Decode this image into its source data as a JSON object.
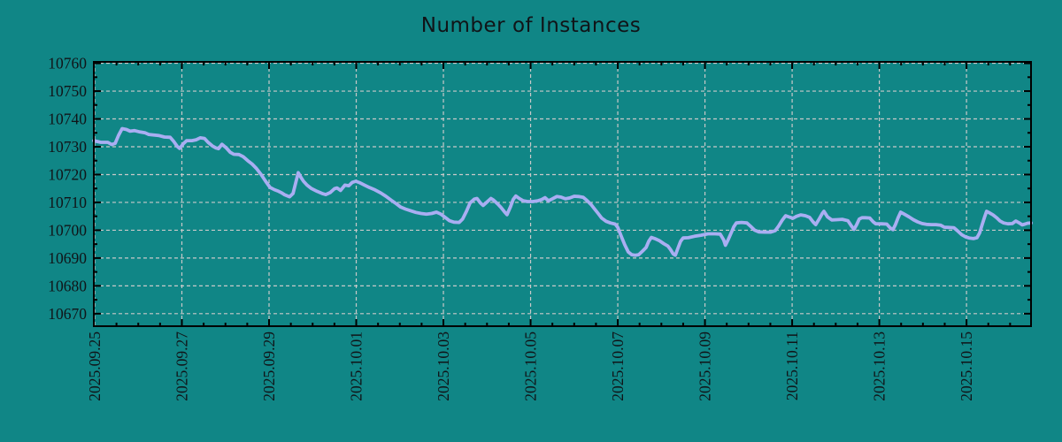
{
  "chart_data": {
    "type": "line",
    "title": "Number of Instances",
    "legend": "none",
    "x_axis": {
      "unit": "date",
      "start_label": "2025.09.25",
      "range_days": [
        -0.02,
        21.48
      ],
      "major_tick_every_days": 2,
      "minor_tick_every_days": 0.5,
      "tick_labels": [
        "2025.09.25",
        "2025.09.27",
        "2025.09.29",
        "2025.10.01",
        "2025.10.03",
        "2025.10.05",
        "2025.10.07",
        "2025.10.09",
        "2025.10.11",
        "2025.10.13",
        "2025.10.15"
      ]
    },
    "y_axis": {
      "range": [
        10665.5,
        10760.5
      ],
      "major_ticks": [
        10670,
        10680,
        10690,
        10700,
        10710,
        10720,
        10730,
        10740,
        10750,
        10760
      ],
      "minor_step": 5
    },
    "grid": {
      "show": true,
      "style": "dashed",
      "color": "#c9c9c9"
    },
    "series": [
      {
        "name": "instances",
        "color": "#a9aef2",
        "points": [
          [
            -0.04,
            10732.2
          ],
          [
            0.14,
            10731.6
          ],
          [
            0.3,
            10731.6
          ],
          [
            0.39,
            10730.8
          ],
          [
            0.47,
            10731.2
          ],
          [
            0.55,
            10734.2
          ],
          [
            0.63,
            10736.5
          ],
          [
            0.73,
            10736.2
          ],
          [
            0.81,
            10735.6
          ],
          [
            0.91,
            10735.8
          ],
          [
            1.04,
            10735.3
          ],
          [
            1.16,
            10735.0
          ],
          [
            1.24,
            10734.4
          ],
          [
            1.36,
            10734.2
          ],
          [
            1.48,
            10734.0
          ],
          [
            1.6,
            10733.5
          ],
          [
            1.73,
            10733.4
          ],
          [
            1.81,
            10732.0
          ],
          [
            1.89,
            10730.2
          ],
          [
            1.95,
            10729.4
          ],
          [
            2.03,
            10731.0
          ],
          [
            2.11,
            10732.2
          ],
          [
            2.23,
            10732.2
          ],
          [
            2.33,
            10732.5
          ],
          [
            2.42,
            10733.2
          ],
          [
            2.52,
            10733.0
          ],
          [
            2.6,
            10731.6
          ],
          [
            2.7,
            10730.3
          ],
          [
            2.78,
            10729.6
          ],
          [
            2.84,
            10729.3
          ],
          [
            2.92,
            10730.9
          ],
          [
            3.02,
            10729.6
          ],
          [
            3.11,
            10728.0
          ],
          [
            3.19,
            10727.3
          ],
          [
            3.31,
            10727.2
          ],
          [
            3.41,
            10726.4
          ],
          [
            3.51,
            10725.0
          ],
          [
            3.61,
            10723.8
          ],
          [
            3.71,
            10722.2
          ],
          [
            3.82,
            10720.0
          ],
          [
            3.92,
            10717.6
          ],
          [
            4.02,
            10715.4
          ],
          [
            4.12,
            10714.6
          ],
          [
            4.22,
            10714.0
          ],
          [
            4.28,
            10713.5
          ],
          [
            4.36,
            10712.7
          ],
          [
            4.47,
            10712.0
          ],
          [
            4.55,
            10713.2
          ],
          [
            4.61,
            10717.0
          ],
          [
            4.67,
            10720.7
          ],
          [
            4.73,
            10719.0
          ],
          [
            4.79,
            10717.6
          ],
          [
            4.87,
            10716.2
          ],
          [
            4.97,
            10715.0
          ],
          [
            5.1,
            10714.0
          ],
          [
            5.22,
            10713.2
          ],
          [
            5.3,
            10712.8
          ],
          [
            5.4,
            10713.5
          ],
          [
            5.5,
            10714.9
          ],
          [
            5.56,
            10715.2
          ],
          [
            5.64,
            10714.3
          ],
          [
            5.74,
            10716.2
          ],
          [
            5.83,
            10716.0
          ],
          [
            5.91,
            10717.2
          ],
          [
            5.99,
            10717.6
          ],
          [
            6.09,
            10717.0
          ],
          [
            6.19,
            10716.2
          ],
          [
            6.31,
            10715.3
          ],
          [
            6.43,
            10714.5
          ],
          [
            6.56,
            10713.4
          ],
          [
            6.68,
            10712.2
          ],
          [
            6.8,
            10710.8
          ],
          [
            6.92,
            10709.5
          ],
          [
            7.02,
            10708.3
          ],
          [
            7.13,
            10707.6
          ],
          [
            7.25,
            10707.0
          ],
          [
            7.37,
            10706.4
          ],
          [
            7.49,
            10706.0
          ],
          [
            7.61,
            10705.8
          ],
          [
            7.73,
            10706.0
          ],
          [
            7.84,
            10706.5
          ],
          [
            7.94,
            10705.8
          ],
          [
            8.04,
            10704.6
          ],
          [
            8.14,
            10703.4
          ],
          [
            8.24,
            10702.9
          ],
          [
            8.36,
            10702.8
          ],
          [
            8.44,
            10704.0
          ],
          [
            8.53,
            10706.8
          ],
          [
            8.61,
            10709.8
          ],
          [
            8.71,
            10711.2
          ],
          [
            8.77,
            10711.4
          ],
          [
            8.85,
            10709.8
          ],
          [
            8.91,
            10708.9
          ],
          [
            8.99,
            10710.0
          ],
          [
            9.09,
            10711.4
          ],
          [
            9.15,
            10710.8
          ],
          [
            9.24,
            10709.5
          ],
          [
            9.32,
            10708.2
          ],
          [
            9.4,
            10706.6
          ],
          [
            9.46,
            10705.6
          ],
          [
            9.54,
            10708.5
          ],
          [
            9.6,
            10711.0
          ],
          [
            9.66,
            10712.3
          ],
          [
            9.74,
            10711.4
          ],
          [
            9.83,
            10710.6
          ],
          [
            9.93,
            10710.3
          ],
          [
            10.05,
            10710.3
          ],
          [
            10.17,
            10710.6
          ],
          [
            10.25,
            10711.0
          ],
          [
            10.33,
            10711.7
          ],
          [
            10.41,
            10710.6
          ],
          [
            10.49,
            10711.2
          ],
          [
            10.6,
            10712.1
          ],
          [
            10.7,
            10711.9
          ],
          [
            10.8,
            10711.3
          ],
          [
            10.9,
            10711.6
          ],
          [
            11.0,
            10712.2
          ],
          [
            11.1,
            10712.1
          ],
          [
            11.21,
            10711.8
          ],
          [
            11.29,
            10710.7
          ],
          [
            11.39,
            10709.2
          ],
          [
            11.47,
            10707.6
          ],
          [
            11.55,
            10706.0
          ],
          [
            11.63,
            10704.4
          ],
          [
            11.73,
            10703.2
          ],
          [
            11.83,
            10702.6
          ],
          [
            11.94,
            10702.2
          ],
          [
            12.0,
            10701.0
          ],
          [
            12.08,
            10697.8
          ],
          [
            12.16,
            10694.8
          ],
          [
            12.24,
            10692.2
          ],
          [
            12.32,
            10691.2
          ],
          [
            12.4,
            10691.0
          ],
          [
            12.48,
            10691.2
          ],
          [
            12.57,
            10692.5
          ],
          [
            12.65,
            10693.8
          ],
          [
            12.71,
            10696.0
          ],
          [
            12.77,
            10697.4
          ],
          [
            12.85,
            10697.0
          ],
          [
            12.95,
            10696.3
          ],
          [
            13.05,
            10695.2
          ],
          [
            13.15,
            10694.3
          ],
          [
            13.21,
            10693.0
          ],
          [
            13.27,
            10691.5
          ],
          [
            13.32,
            10691.0
          ],
          [
            13.38,
            10693.5
          ],
          [
            13.44,
            10696.0
          ],
          [
            13.5,
            10697.2
          ],
          [
            13.62,
            10697.3
          ],
          [
            13.76,
            10697.8
          ],
          [
            13.91,
            10698.2
          ],
          [
            14.07,
            10698.7
          ],
          [
            14.23,
            10698.7
          ],
          [
            14.35,
            10698.6
          ],
          [
            14.43,
            10696.5
          ],
          [
            14.47,
            10694.6
          ],
          [
            14.53,
            10696.5
          ],
          [
            14.6,
            10699.0
          ],
          [
            14.66,
            10701.2
          ],
          [
            14.72,
            10702.6
          ],
          [
            14.84,
            10702.8
          ],
          [
            14.96,
            10702.6
          ],
          [
            15.06,
            10701.2
          ],
          [
            15.14,
            10700.0
          ],
          [
            15.23,
            10699.4
          ],
          [
            15.37,
            10699.3
          ],
          [
            15.51,
            10699.3
          ],
          [
            15.61,
            10699.8
          ],
          [
            15.69,
            10701.5
          ],
          [
            15.77,
            10703.5
          ],
          [
            15.85,
            10705.2
          ],
          [
            15.94,
            10704.7
          ],
          [
            16.02,
            10704.3
          ],
          [
            16.1,
            10705.0
          ],
          [
            16.2,
            10705.5
          ],
          [
            16.3,
            10705.2
          ],
          [
            16.4,
            10704.6
          ],
          [
            16.48,
            10703.0
          ],
          [
            16.54,
            10702.0
          ],
          [
            16.62,
            10704.0
          ],
          [
            16.69,
            10706.0
          ],
          [
            16.73,
            10706.8
          ],
          [
            16.81,
            10704.8
          ],
          [
            16.91,
            10703.7
          ],
          [
            17.03,
            10703.8
          ],
          [
            17.15,
            10703.9
          ],
          [
            17.28,
            10703.4
          ],
          [
            17.36,
            10701.5
          ],
          [
            17.42,
            10700.3
          ],
          [
            17.48,
            10702.0
          ],
          [
            17.54,
            10704.0
          ],
          [
            17.6,
            10704.5
          ],
          [
            17.68,
            10704.5
          ],
          [
            17.78,
            10704.4
          ],
          [
            17.86,
            10703.0
          ],
          [
            17.92,
            10702.3
          ],
          [
            18.05,
            10702.3
          ],
          [
            18.17,
            10702.2
          ],
          [
            18.25,
            10700.8
          ],
          [
            18.31,
            10700.2
          ],
          [
            18.37,
            10702.0
          ],
          [
            18.43,
            10704.5
          ],
          [
            18.49,
            10706.5
          ],
          [
            18.57,
            10705.8
          ],
          [
            18.68,
            10704.8
          ],
          [
            18.78,
            10703.8
          ],
          [
            18.88,
            10703.0
          ],
          [
            18.98,
            10702.4
          ],
          [
            19.08,
            10702.1
          ],
          [
            19.2,
            10702.0
          ],
          [
            19.3,
            10702.0
          ],
          [
            19.41,
            10701.8
          ],
          [
            19.49,
            10701.1
          ],
          [
            19.59,
            10701.0
          ],
          [
            19.71,
            10700.9
          ],
          [
            19.79,
            10699.8
          ],
          [
            19.89,
            10698.4
          ],
          [
            19.98,
            10697.6
          ],
          [
            20.06,
            10697.2
          ],
          [
            20.16,
            10697.0
          ],
          [
            20.24,
            10697.3
          ],
          [
            20.3,
            10699.0
          ],
          [
            20.36,
            10702.0
          ],
          [
            20.42,
            10705.0
          ],
          [
            20.46,
            10706.8
          ],
          [
            20.52,
            10706.3
          ],
          [
            20.61,
            10705.5
          ],
          [
            20.69,
            10704.5
          ],
          [
            20.77,
            10703.3
          ],
          [
            20.85,
            10702.6
          ],
          [
            20.95,
            10702.3
          ],
          [
            21.05,
            10702.4
          ],
          [
            21.13,
            10703.3
          ],
          [
            21.21,
            10702.6
          ],
          [
            21.28,
            10701.9
          ],
          [
            21.34,
            10702.2
          ],
          [
            21.4,
            10702.5
          ],
          [
            21.48,
            10702.6
          ]
        ]
      }
    ]
  },
  "style": {
    "background": "#108686",
    "axis_color": "#000000",
    "text_color": "#101418",
    "grid_color": "#c9c9c9",
    "line_color": "#a9aef2"
  }
}
